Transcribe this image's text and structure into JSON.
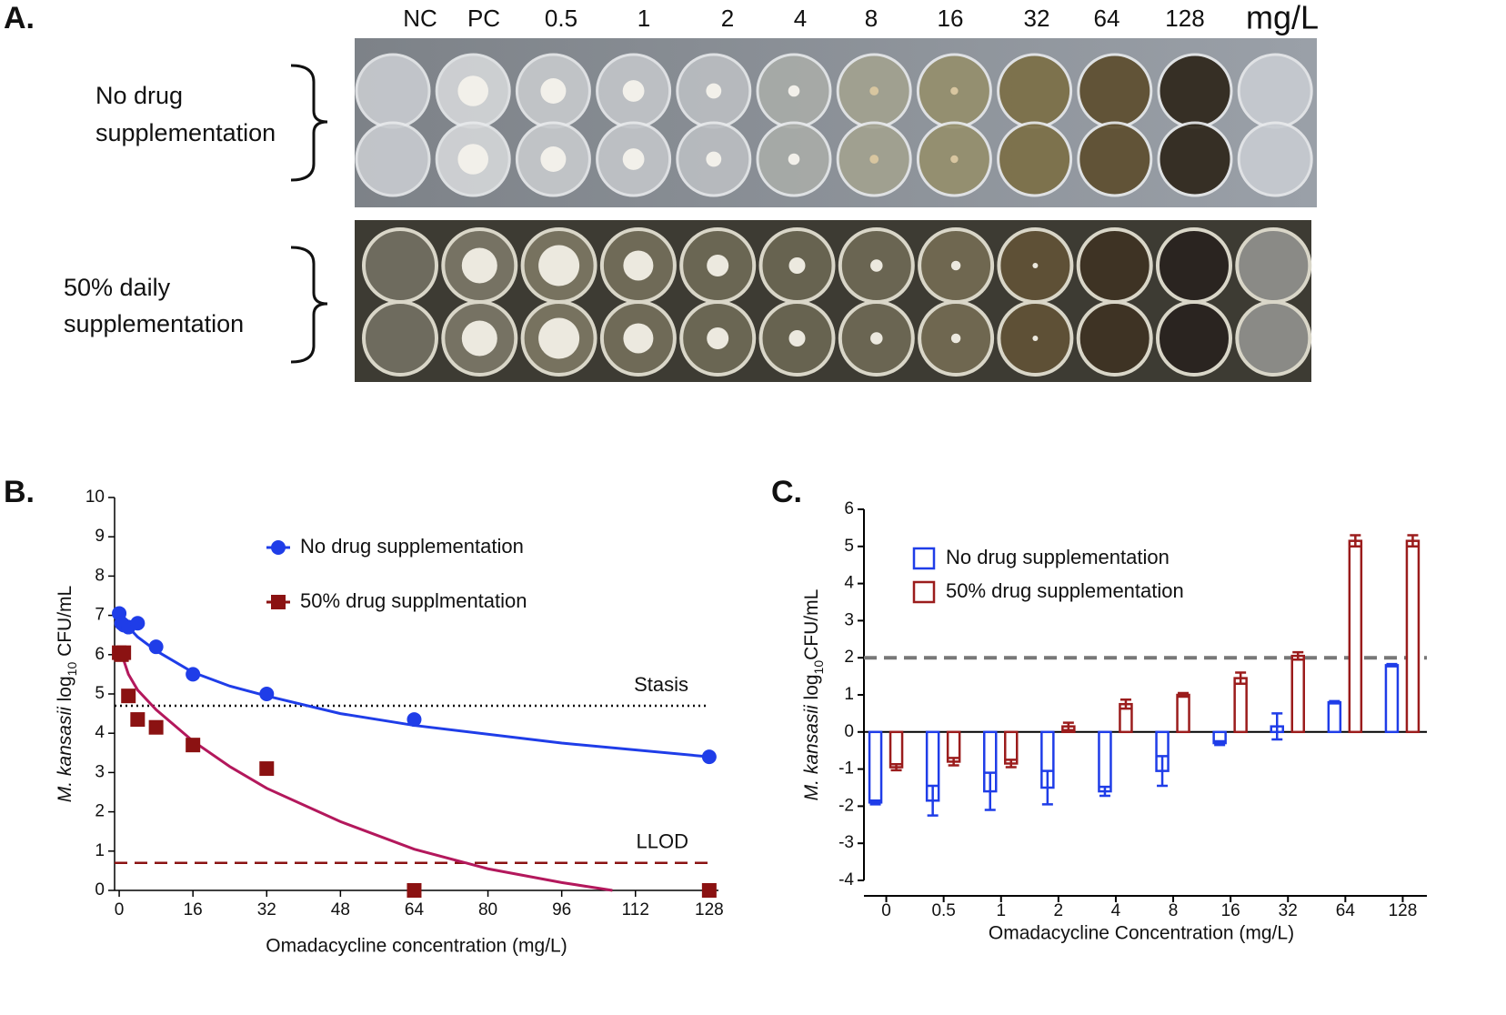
{
  "panel_a": {
    "label": "A.",
    "columns": [
      "NC",
      "PC",
      "0.5",
      "1",
      "2",
      "4",
      "8",
      "16",
      "32",
      "64",
      "128"
    ],
    "unit": "mg/L",
    "rows": [
      {
        "lines": [
          "No drug",
          "supplementation"
        ]
      },
      {
        "lines": [
          "50% daily",
          "supplementation"
        ]
      }
    ]
  },
  "chart_data": [
    {
      "type": "scatter",
      "label": "B.",
      "x_label": "Omadacycline concentration (mg/L)",
      "y_label": [
        "M. kansasii",
        " log",
        "10",
        " CFU/mL"
      ],
      "xlim": [
        -1,
        130
      ],
      "ylim": [
        0,
        10
      ],
      "xticks": [
        0,
        16,
        32,
        48,
        64,
        80,
        96,
        112,
        128
      ],
      "yticks": [
        0,
        1,
        2,
        3,
        4,
        5,
        6,
        7,
        8,
        9,
        10
      ],
      "series": [
        {
          "name": "No drug supplementation",
          "color": "#1f3de8",
          "marker": "circle",
          "x": [
            0,
            0.5,
            1,
            2,
            4,
            8,
            16,
            32,
            64,
            128
          ],
          "values": [
            7.05,
            6.8,
            6.75,
            6.7,
            6.8,
            6.2,
            5.5,
            5.0,
            4.35,
            3.4
          ]
        },
        {
          "name": "50% drug supplmentation",
          "color": "#8b1212",
          "marker": "square",
          "x": [
            0,
            0.5,
            1,
            2,
            4,
            8,
            16,
            32,
            64,
            128
          ],
          "values": [
            6.05,
            6.0,
            6.05,
            4.95,
            4.35,
            4.15,
            3.7,
            3.1,
            0,
            0
          ]
        }
      ],
      "curves": [
        {
          "color": "#1f3de8",
          "x": [
            0,
            4,
            8,
            16,
            24,
            32,
            48,
            64,
            96,
            128
          ],
          "values": [
            6.95,
            6.45,
            6.1,
            5.55,
            5.2,
            4.95,
            4.5,
            4.2,
            3.75,
            3.4
          ]
        },
        {
          "color": "#b3185c",
          "x": [
            0,
            2,
            4,
            8,
            16,
            24,
            32,
            48,
            64,
            80,
            96,
            107
          ],
          "values": [
            6.2,
            5.5,
            5.1,
            4.6,
            3.8,
            3.15,
            2.6,
            1.75,
            1.05,
            0.55,
            0.2,
            0
          ]
        }
      ],
      "reference_lines": [
        {
          "label": "Stasis",
          "value": 4.7,
          "color": "#000000",
          "style": "dotted"
        },
        {
          "label": "LLOD",
          "value": 0.7,
          "color": "#8b1212",
          "style": "dashed"
        }
      ]
    },
    {
      "type": "bar",
      "label": "C.",
      "x_label": "Omadacycline Concentration (mg/L)",
      "y_label": [
        "M. kansasii",
        " log",
        "10",
        "CFU/mL"
      ],
      "categories": [
        "0",
        "0.5",
        "1",
        "2",
        "4",
        "8",
        "16",
        "32",
        "64",
        "128"
      ],
      "ylim": [
        -4,
        6
      ],
      "yticks": [
        -4,
        -3,
        -2,
        -1,
        0,
        1,
        2,
        3,
        4,
        5,
        6
      ],
      "series": [
        {
          "name": "No drug supplementation",
          "color": "#1f3de8",
          "values": [
            -1.9,
            -1.85,
            -1.6,
            -1.5,
            -1.6,
            -1.05,
            -0.3,
            0.15,
            0.8,
            1.8
          ],
          "errors": [
            0.05,
            0.4,
            0.5,
            0.45,
            0.12,
            0.4,
            0.05,
            0.35,
            0.03,
            0.03
          ]
        },
        {
          "name": "50% drug supplementation",
          "color": "#9b1c1c",
          "values": [
            -0.95,
            -0.8,
            -0.85,
            0.15,
            0.75,
            1.0,
            1.45,
            2.05,
            5.15,
            5.15
          ],
          "errors": [
            0.08,
            0.1,
            0.1,
            0.1,
            0.12,
            0.05,
            0.15,
            0.1,
            0.15,
            0.15
          ]
        }
      ],
      "reference_lines": [
        {
          "value": 2,
          "color": "#777777",
          "style": "dashed"
        }
      ]
    }
  ]
}
